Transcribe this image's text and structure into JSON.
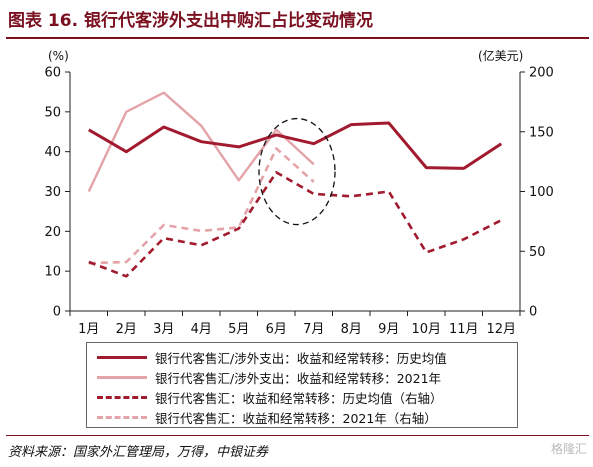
{
  "title": "图表 16. 银行代客涉外支出中购汇占比变动情况",
  "source": "资料来源：国家外汇管理局，万得，中银证券",
  "watermark": "格隆汇",
  "colors": {
    "dark_red": "#a21a2e",
    "light_pink": "#e3a3a8",
    "title_red": "#7a1020"
  },
  "chart_data": {
    "type": "line",
    "categories": [
      "1月",
      "2月",
      "3月",
      "4月",
      "5月",
      "6月",
      "7月",
      "8月",
      "9月",
      "10月",
      "11月",
      "12月"
    ],
    "left_axis": {
      "unit": "(%)",
      "min": 0,
      "max": 60,
      "ticks": [
        0,
        10,
        20,
        30,
        40,
        50,
        60
      ]
    },
    "right_axis": {
      "unit": "(亿美元)",
      "min": 0,
      "max": 200,
      "ticks": [
        0,
        50,
        100,
        150,
        200
      ]
    },
    "grid": false,
    "legend_placement": "bottom",
    "series": [
      {
        "name": "银行代客售汇/涉外支出：收益和经常转移：历史均值",
        "axis": "left",
        "color": "#a21a2e",
        "dash": false,
        "values": [
          45.5,
          40,
          46.2,
          42.5,
          41.2,
          44.2,
          42,
          46.8,
          47.2,
          36,
          35.8,
          42
        ]
      },
      {
        "name": "银行代客售汇/涉外支出：收益和经常转移：2021年",
        "axis": "left",
        "color": "#e3a3a8",
        "dash": false,
        "values": [
          30,
          50,
          54.8,
          46.5,
          32.8,
          45.5,
          36.8,
          null,
          null,
          null,
          null,
          null
        ]
      },
      {
        "name": "银行代客售汇：收益和经常转移：历史均值（右轴）",
        "axis": "right",
        "color": "#a21a2e",
        "dash": true,
        "values": [
          41,
          29,
          61,
          55,
          69,
          116,
          98,
          96,
          100,
          49,
          60,
          76
        ]
      },
      {
        "name": "银行代客售汇：收益和经常转移：2021年（右轴）",
        "axis": "right",
        "color": "#e3a3a8",
        "dash": true,
        "values": [
          40,
          41,
          72,
          67,
          70,
          136,
          108,
          null,
          null,
          null,
          null,
          null
        ]
      }
    ],
    "annotation": {
      "shape": "dashed-ellipse",
      "around_categories": [
        "6月",
        "7月"
      ]
    }
  }
}
